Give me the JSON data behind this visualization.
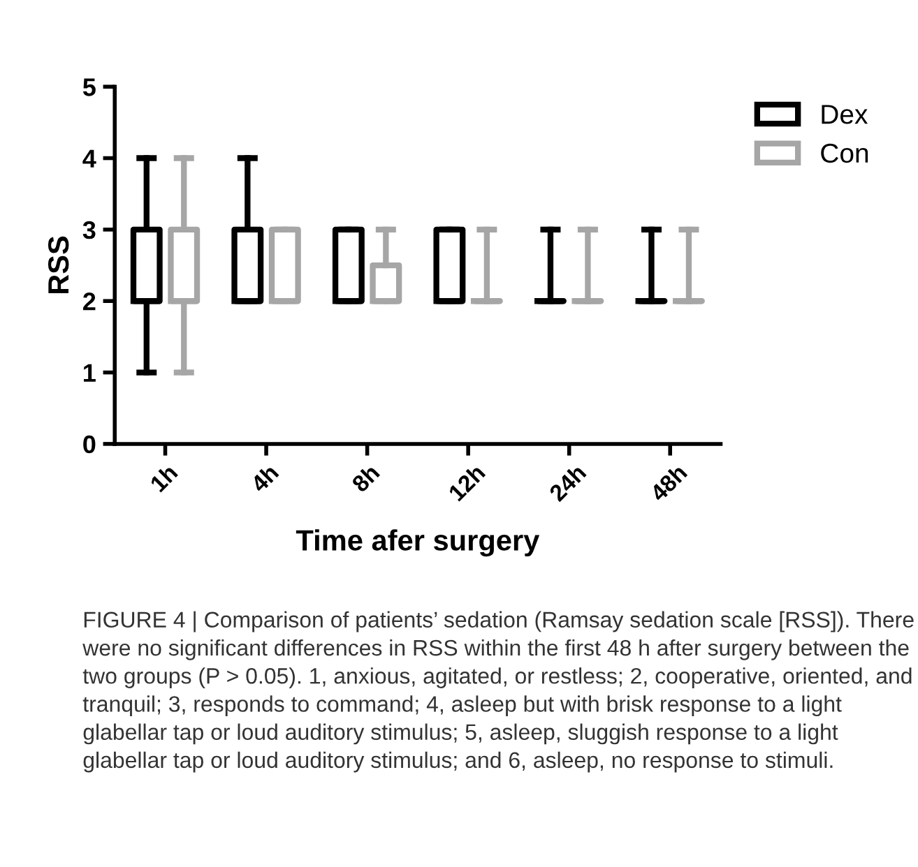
{
  "chart_data": {
    "type": "box",
    "xlabel": "Time afer surgery",
    "ylabel": "RSS",
    "categories": [
      "1h",
      "4h",
      "8h",
      "12h",
      "24h",
      "48h"
    ],
    "series": [
      {
        "name": "Dex",
        "color": "#000000",
        "boxes": [
          {
            "low": 1,
            "q1": 2,
            "median": 2,
            "q3": 3,
            "high": 4
          },
          {
            "low": 2,
            "q1": 2,
            "median": 2,
            "q3": 3,
            "high": 4
          },
          {
            "low": 2,
            "q1": 2,
            "median": 2,
            "q3": 3,
            "high": 3
          },
          {
            "low": 2,
            "q1": 2,
            "median": 2,
            "q3": 3,
            "high": 3
          },
          {
            "low": 2,
            "q1": 2,
            "median": 2,
            "q3": 2,
            "high": 3
          },
          {
            "low": 2,
            "q1": 2,
            "median": 2,
            "q3": 2,
            "high": 3
          }
        ]
      },
      {
        "name": "Con",
        "color": "#a6a6a6",
        "boxes": [
          {
            "low": 1,
            "q1": 2,
            "median": 2,
            "q3": 3,
            "high": 4
          },
          {
            "low": 2,
            "q1": 2,
            "median": 2,
            "q3": 3,
            "high": 3
          },
          {
            "low": 2,
            "q1": 2,
            "median": 2,
            "q3": 2.5,
            "high": 3
          },
          {
            "low": 2,
            "q1": 2,
            "median": 2,
            "q3": 2,
            "high": 3
          },
          {
            "low": 2,
            "q1": 2,
            "median": 2,
            "q3": 2,
            "high": 3
          },
          {
            "low": 2,
            "q1": 2,
            "median": 2,
            "q3": 2,
            "high": 3
          }
        ]
      }
    ],
    "ylim": [
      0,
      5
    ],
    "yticks": [
      0,
      1,
      2,
      3,
      4,
      5
    ],
    "grid": false,
    "legend": "top right",
    "annotations": [
      "FIGURE 4 | Comparison of patients’ sedation (Ramsay sedation scale [RSS]). There were no significant differences in RSS within the first 48 h after surgery between the two groups (P > 0.05). 1, anxious, agitated, or restless; 2, cooperative, oriented, and tranquil; 3, responds to command; 4, asleep but with brisk response to a light glabellar tap or loud auditory stimulus; 5, asleep, sluggish response to a light glabellar tap or loud auditory stimulus; and 6, asleep, no response to stimuli."
    ]
  }
}
